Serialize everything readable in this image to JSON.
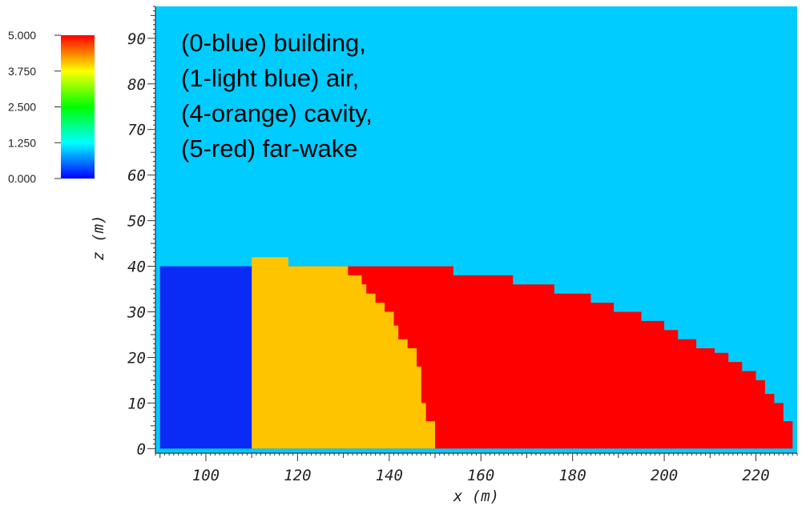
{
  "chart_data": {
    "type": "heatmap",
    "xlabel": "x (m)",
    "ylabel": "z (m)",
    "xlim": [
      89,
      229
    ],
    "ylim": [
      -1,
      97
    ],
    "x_ticks": [
      "100",
      "120",
      "140",
      "160",
      "180",
      "200",
      "220"
    ],
    "y_ticks": [
      "0",
      "10",
      "20",
      "30",
      "40",
      "50",
      "60",
      "70",
      "80",
      "90"
    ],
    "colorbar": {
      "range": [
        0,
        5
      ],
      "labels": [
        "5.000",
        "3.750",
        "2.500",
        "1.250",
        "0.000"
      ]
    },
    "annotation_lines": [
      "(0-blue) building,",
      "(1-light blue) air,",
      "(4-orange) cavity,",
      "(5-red) far-wake"
    ],
    "colors": {
      "building": "#0a2af5",
      "air": "#00ccff",
      "cavity": "#ffc400",
      "far_wake": "#ff0000"
    },
    "background_value": 1,
    "domain_x": [
      90,
      228
    ],
    "building": {
      "x": [
        90,
        110
      ],
      "z": [
        0,
        40
      ]
    },
    "cavity_boundary": [
      [
        0,
        150
      ],
      [
        6,
        148
      ],
      [
        10,
        147
      ],
      [
        18,
        146
      ],
      [
        22,
        144
      ],
      [
        24,
        142
      ],
      [
        27,
        141
      ],
      [
        30,
        139
      ],
      [
        32,
        137
      ],
      [
        34,
        135
      ],
      [
        36,
        134
      ],
      [
        38,
        131
      ],
      [
        40,
        129
      ],
      [
        40,
        118
      ],
      [
        42,
        118
      ]
    ],
    "wake_boundary": [
      [
        0,
        228
      ],
      [
        6,
        226
      ],
      [
        10,
        224
      ],
      [
        12,
        222
      ],
      [
        15,
        220
      ],
      [
        17,
        217
      ],
      [
        19,
        214
      ],
      [
        21,
        211
      ],
      [
        22,
        207
      ],
      [
        24,
        203
      ],
      [
        26,
        200
      ],
      [
        28,
        195
      ],
      [
        30,
        189
      ],
      [
        32,
        184
      ],
      [
        34,
        176
      ],
      [
        36,
        167
      ],
      [
        38,
        154
      ],
      [
        40,
        136
      ]
    ]
  }
}
